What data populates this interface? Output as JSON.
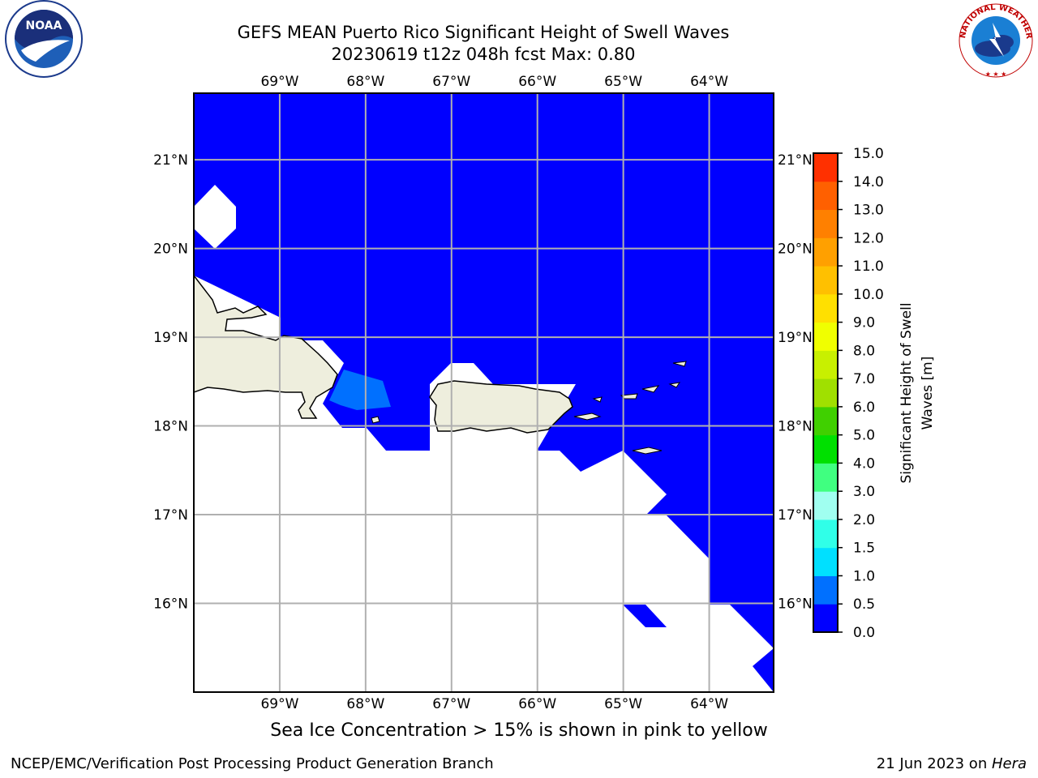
{
  "header": {
    "title_line1": "GEFS MEAN Puerto Rico Significant Height of Swell Waves",
    "title_line2": "20230619 t12z 048h fcst   Max: 0.80"
  },
  "logos": {
    "left": "noaa-logo",
    "right": "nws-logo"
  },
  "map": {
    "lon_labels": [
      "69°W",
      "68°W",
      "67°W",
      "66°W",
      "65°W",
      "64°W"
    ],
    "lat_labels": [
      "21°N",
      "20°N",
      "19°N",
      "18°N",
      "17°N",
      "16°N"
    ],
    "lon_values": [
      -69,
      -68,
      -67,
      -66,
      -65,
      -64
    ],
    "lat_values": [
      21,
      20,
      19,
      18,
      17,
      16
    ],
    "lon_range": [
      -70.0,
      -63.25
    ],
    "lat_range": [
      15.0,
      21.75
    ],
    "land_color": "#eeeedd",
    "water_color": "#0000ff",
    "moderate_swell_color": "#0070ff",
    "grid_color": "#b0b0b0"
  },
  "colorbar": {
    "label": "Significant Height of Swell Waves [m]",
    "ticks": [
      "15.0",
      "14.0",
      "13.0",
      "12.0",
      "11.0",
      "10.0",
      "9.0",
      "8.0",
      "7.0",
      "6.0",
      "5.0",
      "4.0",
      "3.0",
      "2.0",
      "1.5",
      "1.0",
      "0.5",
      "0.0"
    ],
    "colors": [
      "#0000ff",
      "#0070ff",
      "#00e0ff",
      "#30ffe8",
      "#a0fff0",
      "#40ff80",
      "#00e000",
      "#40d000",
      "#a0e000",
      "#c8f000",
      "#f0ff00",
      "#ffe000",
      "#ffc000",
      "#ffa000",
      "#ff8000",
      "#ff6000",
      "#ff3000"
    ]
  },
  "caption": "Sea Ice Concentration > 15% is shown in pink to yellow",
  "footer": {
    "left": "NCEP/EMC/Verification Post Processing Product Generation Branch",
    "right_date": "21 Jun 2023 on ",
    "right_host": "Hera"
  }
}
